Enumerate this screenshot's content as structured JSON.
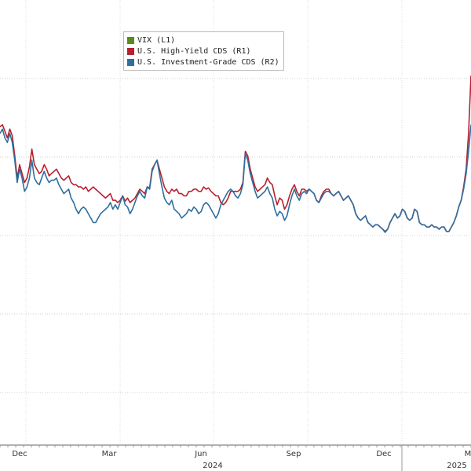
{
  "chart_data": {
    "type": "line",
    "title": "",
    "legend_position": "top-left",
    "grid": true,
    "x_tick_labels": [
      "Dec",
      "Mar",
      "Jun",
      "Sep",
      "Dec",
      "M"
    ],
    "year_labels": [
      "2024",
      "2025"
    ],
    "series": [
      {
        "name": "VIX (L1)",
        "color": "#5a8a1e",
        "values": [],
        "legend_label": "VIX (L1)"
      },
      {
        "name": "U.S. High-Yield CDS (R1)",
        "color": "#b8202e",
        "legend_label": "U.S. High-Yield CDS (R1)",
        "values": [
          0.715,
          0.72,
          0.705,
          0.69,
          0.71,
          0.695,
          0.65,
          0.6,
          0.63,
          0.61,
          0.59,
          0.6,
          0.625,
          0.665,
          0.63,
          0.62,
          0.61,
          0.615,
          0.63,
          0.62,
          0.605,
          0.61,
          0.615,
          0.62,
          0.61,
          0.6,
          0.595,
          0.6,
          0.605,
          0.59,
          0.585,
          0.585,
          0.58,
          0.58,
          0.575,
          0.58,
          0.57,
          0.575,
          0.58,
          0.575,
          0.57,
          0.565,
          0.56,
          0.555,
          0.56,
          0.565,
          0.55,
          0.55,
          0.545,
          0.55,
          0.56,
          0.548,
          0.555,
          0.545,
          0.55,
          0.555,
          0.565,
          0.575,
          0.57,
          0.565,
          0.58,
          0.578,
          0.62,
          0.63,
          0.64,
          0.62,
          0.6,
          0.58,
          0.57,
          0.565,
          0.575,
          0.57,
          0.575,
          0.565,
          0.565,
          0.56,
          0.56,
          0.57,
          0.57,
          0.575,
          0.575,
          0.57,
          0.57,
          0.58,
          0.575,
          0.578,
          0.57,
          0.565,
          0.56,
          0.56,
          0.545,
          0.54,
          0.545,
          0.555,
          0.57,
          0.57,
          0.57,
          0.57,
          0.575,
          0.59,
          0.66,
          0.65,
          0.62,
          0.6,
          0.58,
          0.57,
          0.575,
          0.58,
          0.585,
          0.6,
          0.59,
          0.585,
          0.56,
          0.54,
          0.555,
          0.55,
          0.53,
          0.54,
          0.56,
          0.575,
          0.585,
          0.57,
          0.56,
          0.575,
          0.575,
          0.57,
          0.575,
          0.57,
          0.565,
          0.55,
          0.545,
          0.56,
          0.57,
          0.575,
          0.575,
          0.565,
          0.56,
          0.565,
          0.57,
          0.56,
          0.55,
          0.555,
          0.56,
          0.55,
          0.54,
          0.52,
          0.51,
          0.505,
          0.51,
          0.515,
          0.5,
          0.495,
          0.49,
          0.495,
          0.495,
          0.49,
          0.485,
          0.48,
          0.485,
          0.5,
          0.51,
          0.52,
          0.51,
          0.515,
          0.53,
          0.525,
          0.51,
          0.505,
          0.51,
          0.53,
          0.525,
          0.5,
          0.495,
          0.495,
          0.49,
          0.49,
          0.495,
          0.49,
          0.49,
          0.485,
          0.49,
          0.49,
          0.48,
          0.48,
          0.49,
          0.5,
          0.515,
          0.535,
          0.55,
          0.58,
          0.62,
          0.7,
          0.83
        ]
      },
      {
        "name": "U.S. Investment-Grade CDS (R2)",
        "color": "#2e6f9e",
        "legend_label": "U.S. Investment-Grade CDS (R2)",
        "values": [
          0.7,
          0.71,
          0.69,
          0.68,
          0.7,
          0.68,
          0.64,
          0.59,
          0.62,
          0.6,
          0.57,
          0.58,
          0.6,
          0.64,
          0.6,
          0.59,
          0.585,
          0.6,
          0.615,
          0.6,
          0.59,
          0.595,
          0.595,
          0.6,
          0.585,
          0.575,
          0.565,
          0.57,
          0.575,
          0.555,
          0.545,
          0.53,
          0.52,
          0.53,
          0.535,
          0.53,
          0.52,
          0.51,
          0.5,
          0.5,
          0.51,
          0.52,
          0.525,
          0.53,
          0.535,
          0.545,
          0.53,
          0.54,
          0.53,
          0.545,
          0.56,
          0.54,
          0.535,
          0.52,
          0.53,
          0.545,
          0.56,
          0.57,
          0.56,
          0.555,
          0.58,
          0.575,
          0.615,
          0.63,
          0.64,
          0.61,
          0.58,
          0.555,
          0.545,
          0.54,
          0.55,
          0.53,
          0.525,
          0.52,
          0.51,
          0.515,
          0.52,
          0.53,
          0.525,
          0.535,
          0.53,
          0.52,
          0.525,
          0.54,
          0.545,
          0.54,
          0.53,
          0.52,
          0.51,
          0.52,
          0.54,
          0.55,
          0.56,
          0.57,
          0.575,
          0.57,
          0.56,
          0.555,
          0.565,
          0.585,
          0.655,
          0.64,
          0.61,
          0.59,
          0.57,
          0.555,
          0.56,
          0.565,
          0.57,
          0.58,
          0.565,
          0.555,
          0.53,
          0.515,
          0.525,
          0.52,
          0.505,
          0.515,
          0.54,
          0.56,
          0.575,
          0.56,
          0.55,
          0.565,
          0.57,
          0.565,
          0.575,
          0.57,
          0.565,
          0.55,
          0.545,
          0.555,
          0.565,
          0.57,
          0.57,
          0.565,
          0.56,
          0.565,
          0.57,
          0.56,
          0.55,
          0.555,
          0.56,
          0.55,
          0.54,
          0.52,
          0.51,
          0.505,
          0.51,
          0.515,
          0.5,
          0.495,
          0.49,
          0.495,
          0.495,
          0.49,
          0.485,
          0.478,
          0.485,
          0.5,
          0.51,
          0.52,
          0.51,
          0.515,
          0.53,
          0.525,
          0.51,
          0.505,
          0.51,
          0.53,
          0.525,
          0.5,
          0.495,
          0.495,
          0.49,
          0.49,
          0.495,
          0.49,
          0.49,
          0.485,
          0.49,
          0.49,
          0.48,
          0.48,
          0.49,
          0.5,
          0.515,
          0.535,
          0.55,
          0.575,
          0.61,
          0.66,
          0.72
        ]
      }
    ]
  }
}
